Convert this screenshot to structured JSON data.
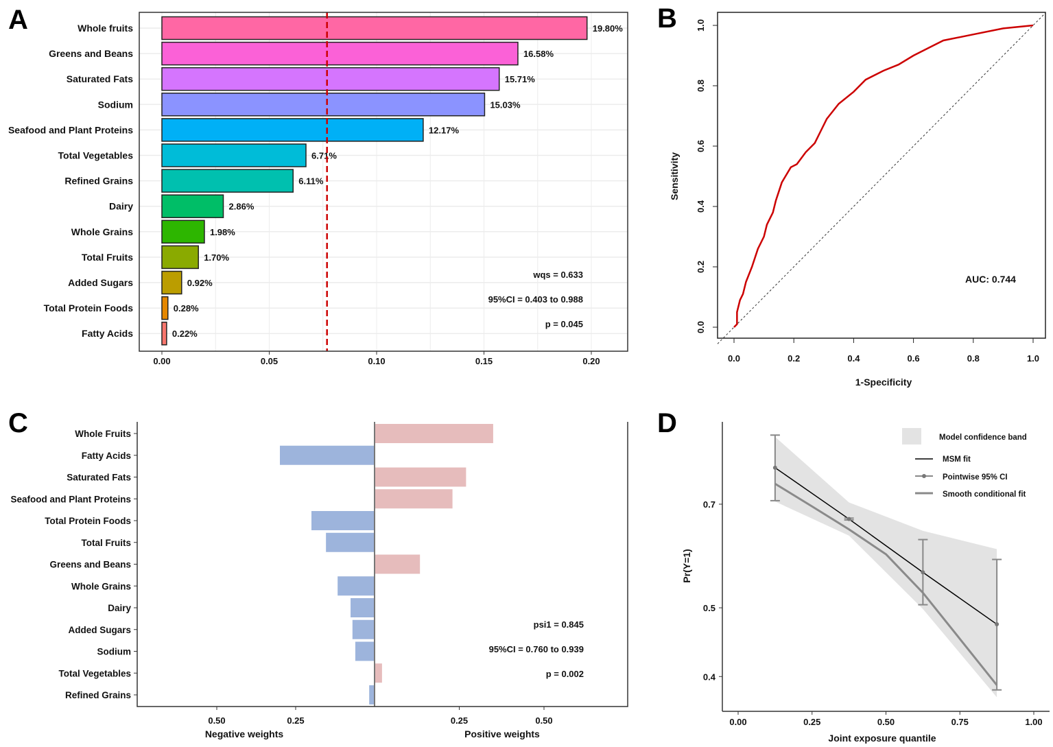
{
  "panel_labels": [
    "A",
    "B",
    "C",
    "D"
  ],
  "chart_data": [
    {
      "panel": "A",
      "type": "bar",
      "orientation": "horizontal",
      "categories": [
        "Whole fruits",
        "Greens and Beans",
        "Saturated Fats",
        "Sodium",
        "Seafood and Plant Proteins",
        "Total Vegetables",
        "Refined Grains",
        "Dairy",
        "Whole Grains",
        "Total Fruits",
        "Added Sugars",
        "Total Protein Foods",
        "Fatty Acids"
      ],
      "values": [
        0.198,
        0.1658,
        0.1571,
        0.1503,
        0.1217,
        0.0671,
        0.0611,
        0.0286,
        0.0198,
        0.017,
        0.0092,
        0.0028,
        0.0022
      ],
      "value_labels": [
        "19.80%",
        "16.58%",
        "15.71%",
        "15.03%",
        "12.17%",
        "6.71%",
        "6.11%",
        "2.86%",
        "1.98%",
        "1.70%",
        "0.92%",
        "0.28%",
        "0.22%"
      ],
      "colors": [
        "#FF67A4",
        "#FB61D7",
        "#D575FE",
        "#8B93FF",
        "#00B0F6",
        "#00BCD8",
        "#00C0AF",
        "#00BE67",
        "#2DB600",
        "#8AAA00",
        "#BB9D00",
        "#E58700",
        "#F8766D"
      ],
      "reference_line": {
        "value": 0.0769,
        "color": "#CC0000",
        "style": "dashed"
      },
      "xlim": [
        -0.01,
        0.216
      ],
      "xticks": [
        0,
        0.05,
        0.1,
        0.15,
        0.2
      ],
      "xtick_labels": [
        "0.00",
        "0.05",
        "0.10",
        "0.15",
        "0.20"
      ],
      "grid": true,
      "annotations": [
        "wqs = 0.633",
        "95%CI = 0.403 to 0.988",
        "p = 0.045"
      ]
    },
    {
      "panel": "B",
      "type": "line",
      "xlabel": "1-Specificity",
      "ylabel": "Sensitivity",
      "xlim": [
        0,
        1
      ],
      "ylim": [
        0,
        1
      ],
      "xticks": [
        "0.0",
        "0.2",
        "0.4",
        "0.6",
        "0.8",
        "1.0"
      ],
      "yticks": [
        "0.0",
        "0.2",
        "0.4",
        "0.6",
        "0.8",
        "1.0"
      ],
      "series": [
        {
          "color": "#CC0000",
          "x": [
            0,
            0.01,
            0.01,
            0.02,
            0.03,
            0.04,
            0.06,
            0.08,
            0.1,
            0.11,
            0.13,
            0.14,
            0.16,
            0.19,
            0.21,
            0.24,
            0.27,
            0.29,
            0.31,
            0.35,
            0.4,
            0.44,
            0.5,
            0.55,
            0.6,
            0.66,
            0.7,
            0.8,
            0.9,
            1.0
          ],
          "y": [
            0,
            0.01,
            0.05,
            0.09,
            0.11,
            0.15,
            0.2,
            0.26,
            0.3,
            0.34,
            0.38,
            0.42,
            0.48,
            0.53,
            0.54,
            0.58,
            0.61,
            0.65,
            0.69,
            0.74,
            0.78,
            0.82,
            0.85,
            0.87,
            0.9,
            0.93,
            0.95,
            0.97,
            0.99,
            1.0
          ]
        }
      ],
      "reference_diagonal": true,
      "annotation": "AUC: 0.744"
    },
    {
      "panel": "C",
      "type": "bar",
      "orientation": "horizontal-diverging",
      "categories": [
        "Whole Fruits",
        "Fatty Acids",
        "Saturated Fats",
        "Seafood and Plant Proteins",
        "Total Protein Foods",
        "Total Fruits",
        "Greens and Beans",
        "Whole Grains",
        "Dairy",
        "Added Sugars",
        "Sodium",
        "Total Vegetables",
        "Refined Grains"
      ],
      "values": [
        0.35,
        -0.3,
        0.27,
        0.23,
        -0.2,
        -0.154,
        0.134,
        -0.117,
        -0.076,
        -0.07,
        -0.061,
        0.022,
        -0.017
      ],
      "colors": {
        "positive": "#E6BCBC",
        "negative": "#9DB4DC"
      },
      "xticks_negative": [
        "0.50",
        "0.25"
      ],
      "xticks_positive": [
        "0.25",
        "0.50"
      ],
      "xlabel_negative": "Negative weights",
      "xlabel_positive": "Positive weights",
      "annotations": [
        "psi1 = 0.845",
        "95%CI = 0.760 to 0.939",
        "p = 0.002"
      ]
    },
    {
      "panel": "D",
      "type": "line",
      "xlabel": "Joint exposure quantile",
      "ylabel": "Pr(Y=1)",
      "y_scale": "log",
      "xlim": [
        0,
        1
      ],
      "xticks": [
        "0.00",
        "0.25",
        "0.50",
        "0.75",
        "1.00"
      ],
      "yticks": [
        "0.7",
        "0.5",
        "0.4"
      ],
      "legend": {
        "position": "top-right",
        "entries": [
          "Model confidence band",
          "MSM fit",
          "Pointwise 95% CI",
          "Smooth conditional fit"
        ]
      },
      "band": {
        "x": [
          0.125,
          0.375,
          0.625,
          0.875
        ],
        "upper": [
          0.871,
          0.704,
          0.642,
          0.605
        ],
        "lower": [
          0.706,
          0.632,
          0.498,
          0.374
        ]
      },
      "msm_fit": {
        "x": [
          0.125,
          0.375,
          0.625,
          0.875
        ],
        "y": [
          0.788,
          0.667,
          0.561,
          0.474
        ],
        "ci_lower": [
          0.708,
          0.665,
          0.505,
          0.383
        ],
        "ci_upper": [
          0.876,
          0.669,
          0.624,
          0.585
        ]
      },
      "smooth_fit": {
        "x": [
          0.125,
          0.25,
          0.375,
          0.5,
          0.625,
          0.75,
          0.875
        ],
        "y": [
          0.748,
          0.695,
          0.645,
          0.595,
          0.525,
          0.452,
          0.389
        ]
      }
    }
  ]
}
